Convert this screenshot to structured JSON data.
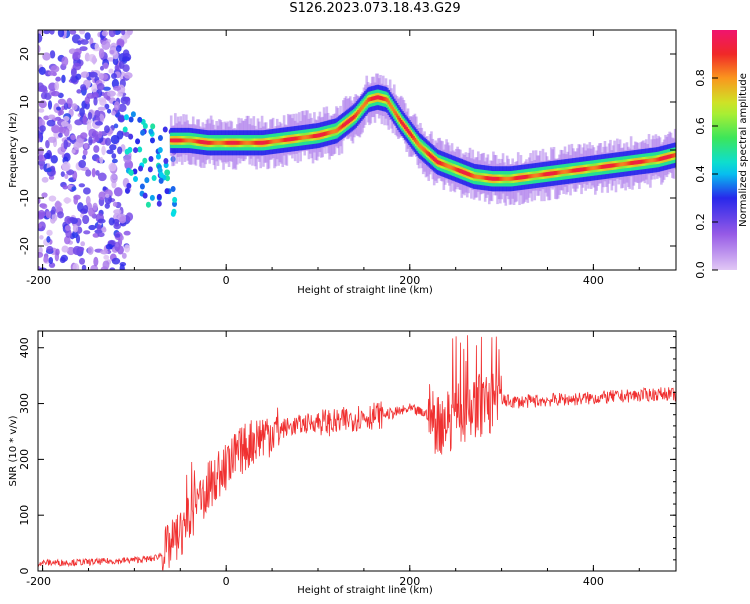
{
  "figure": {
    "title": "S126.2023.073.18.43.G29"
  },
  "chart_data": [
    {
      "type": "heatmap",
      "xlabel": "Height of straight line (km)",
      "ylabel": "Frequency (Hz)",
      "xlim": [
        -205,
        490
      ],
      "ylim": [
        -25,
        25
      ],
      "x_ticks": [
        -200,
        0,
        200,
        400
      ],
      "y_ticks": [
        -20,
        -10,
        0,
        10,
        20
      ],
      "colorbar": {
        "label": "Normalized spectral amplitude",
        "ticks": [
          0.0,
          0.2,
          0.4,
          0.6,
          0.8
        ],
        "range": [
          0,
          1
        ]
      },
      "ridge": {
        "x": [
          -60,
          -40,
          -20,
          0,
          20,
          40,
          60,
          80,
          100,
          120,
          140,
          155,
          165,
          175,
          190,
          210,
          230,
          250,
          270,
          290,
          310,
          330,
          350,
          370,
          390,
          410,
          430,
          450,
          470,
          490
        ],
        "y": [
          2,
          2,
          1.5,
          1.5,
          1.5,
          1.5,
          2,
          2.5,
          3,
          4,
          7,
          10.5,
          11,
          10.5,
          6,
          1,
          -2.5,
          -4,
          -5.5,
          -6,
          -6,
          -5.5,
          -5,
          -4.5,
          -4,
          -3.5,
          -3,
          -2.5,
          -2,
          -1
        ]
      },
      "grid": false,
      "legend": "colorbar-right"
    },
    {
      "type": "line",
      "xlabel": "Height of straight line (km)",
      "ylabel": "SNR (10 * v/v)",
      "xlim": [
        -205,
        490
      ],
      "ylim": [
        0,
        430
      ],
      "x_ticks": [
        -200,
        0,
        200,
        400
      ],
      "y_ticks": [
        0,
        100,
        200,
        300,
        400
      ],
      "series": [
        {
          "color": "#f03030",
          "x": [
            -205,
            -180,
            -150,
            -120,
            -100,
            -80,
            -70,
            -60,
            -50,
            -40,
            -30,
            -20,
            -10,
            0,
            10,
            20,
            30,
            40,
            60,
            80,
            100,
            120,
            140,
            160,
            180,
            200,
            210,
            220,
            230,
            240,
            250,
            260,
            270,
            280,
            290,
            300,
            320,
            340,
            360,
            380,
            400,
            420,
            440,
            460,
            480,
            490
          ],
          "y": [
            15,
            15,
            16,
            18,
            20,
            22,
            30,
            45,
            70,
            90,
            120,
            150,
            170,
            185,
            205,
            220,
            235,
            245,
            255,
            262,
            268,
            265,
            275,
            278,
            282,
            290,
            285,
            280,
            265,
            270,
            280,
            290,
            295,
            300,
            300,
            305,
            303,
            305,
            307,
            308,
            310,
            312,
            314,
            316,
            318,
            315
          ]
        }
      ],
      "grid": false
    }
  ]
}
